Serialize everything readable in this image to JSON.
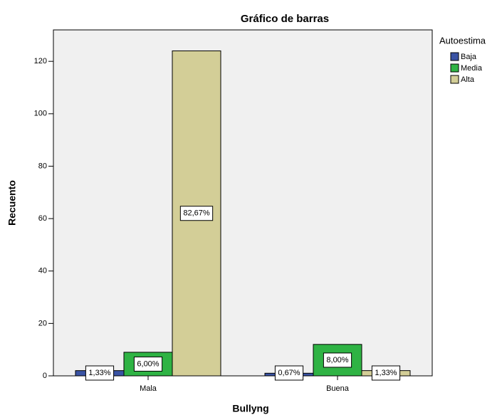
{
  "chart_data": {
    "type": "bar",
    "title": "Gráfico de barras",
    "x_label": "Bullyng",
    "y_label": "Recuento",
    "legend_title": "Autoestima",
    "legend": "right",
    "categories": [
      "Mala",
      "Buena"
    ],
    "series": [
      {
        "name": "Baja",
        "color": "#3a53a4",
        "values": [
          2,
          1
        ],
        "labels": [
          "1,33%",
          "0,67%"
        ]
      },
      {
        "name": "Media",
        "color": "#2fb344",
        "values": [
          9,
          12
        ],
        "labels": [
          "6,00%",
          "8,00%"
        ]
      },
      {
        "name": "Alta",
        "color": "#d3ce97",
        "values": [
          124,
          2
        ],
        "labels": [
          "82,67%",
          "1,33%"
        ]
      }
    ],
    "ylim": [
      0,
      132
    ],
    "yticks": [
      0,
      20,
      40,
      60,
      80,
      100,
      120
    ],
    "grid": false
  }
}
